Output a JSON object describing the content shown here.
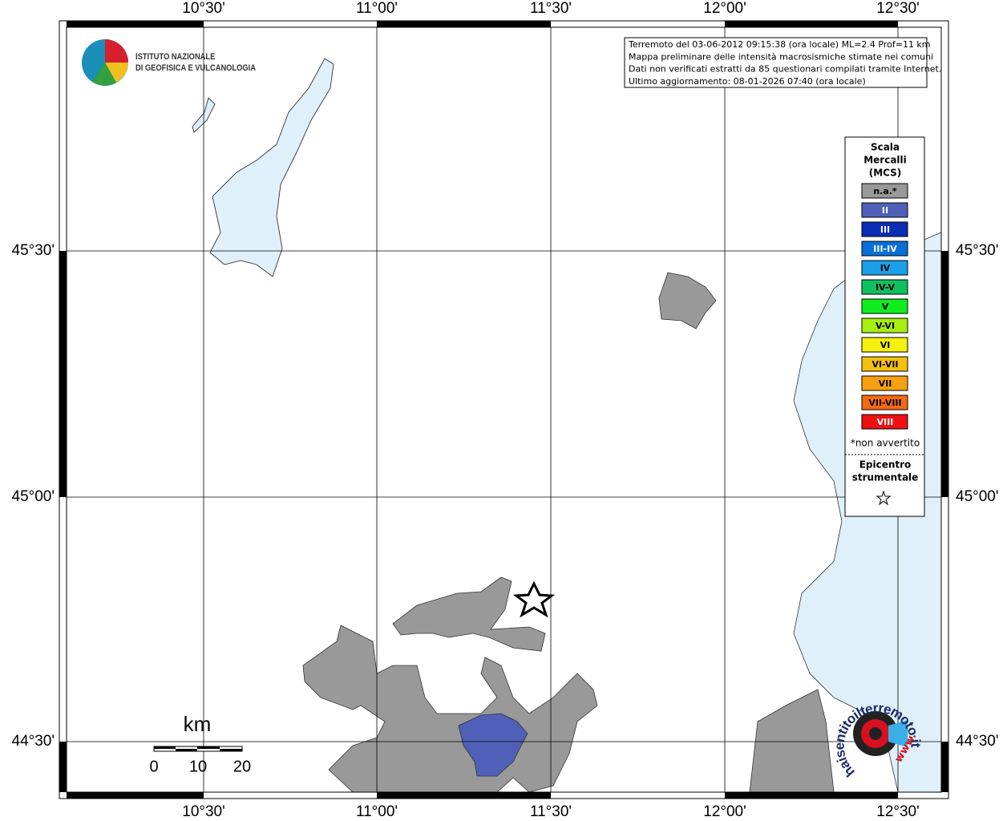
{
  "map": {
    "x_labels": [
      "10°30'",
      "11°00'",
      "11°30'",
      "12°00'",
      "12°30'"
    ],
    "y_labels": [
      "45°30'",
      "45°00'",
      "44°30'"
    ],
    "info": [
      "Terremoto del 03-06-2012 09:15:38 (ora locale) ML=2.4 Prof=11 km",
      "Mappa preliminare delle intensità macrosismiche stimate nei comuni",
      "Dati non verificati estratti da 85 questionari compilati tramite Internet.",
      "Ultimo aggiornamento: 08-01-2026 07:40 (ora locale)"
    ],
    "logo": [
      "ISTITUTO NAZIONALE",
      "DI GEOFISICA E VULCANOLOGIA"
    ],
    "legend": {
      "title": [
        "Scala",
        "Mercalli",
        "(MCS)"
      ],
      "items": [
        {
          "label": "n.a.*",
          "color": "#999999"
        },
        {
          "label": "II",
          "color": "#5060b8"
        },
        {
          "label": "III",
          "color": "#0a2db5"
        },
        {
          "label": "III-IV",
          "color": "#0a6fd8"
        },
        {
          "label": "IV",
          "color": "#1aa0e8"
        },
        {
          "label": "IV-V",
          "color": "#10c060"
        },
        {
          "label": "V",
          "color": "#10ee20"
        },
        {
          "label": "V-VI",
          "color": "#a8ee10"
        },
        {
          "label": "VI",
          "color": "#f5f010"
        },
        {
          "label": "VI-VII",
          "color": "#f5c010"
        },
        {
          "label": "VII",
          "color": "#f5a010"
        },
        {
          "label": "VII-VIII",
          "color": "#f56a10"
        },
        {
          "label": "VIII",
          "color": "#ee1010"
        }
      ],
      "note": "*non avvertito",
      "epicenter": [
        "Epicentro",
        "strumentale"
      ]
    },
    "scale": {
      "unit": "km",
      "ticks": [
        "0",
        "10",
        "20"
      ]
    },
    "brand": {
      "text": "haisentitoilterremoto.it",
      "www": "www."
    }
  }
}
